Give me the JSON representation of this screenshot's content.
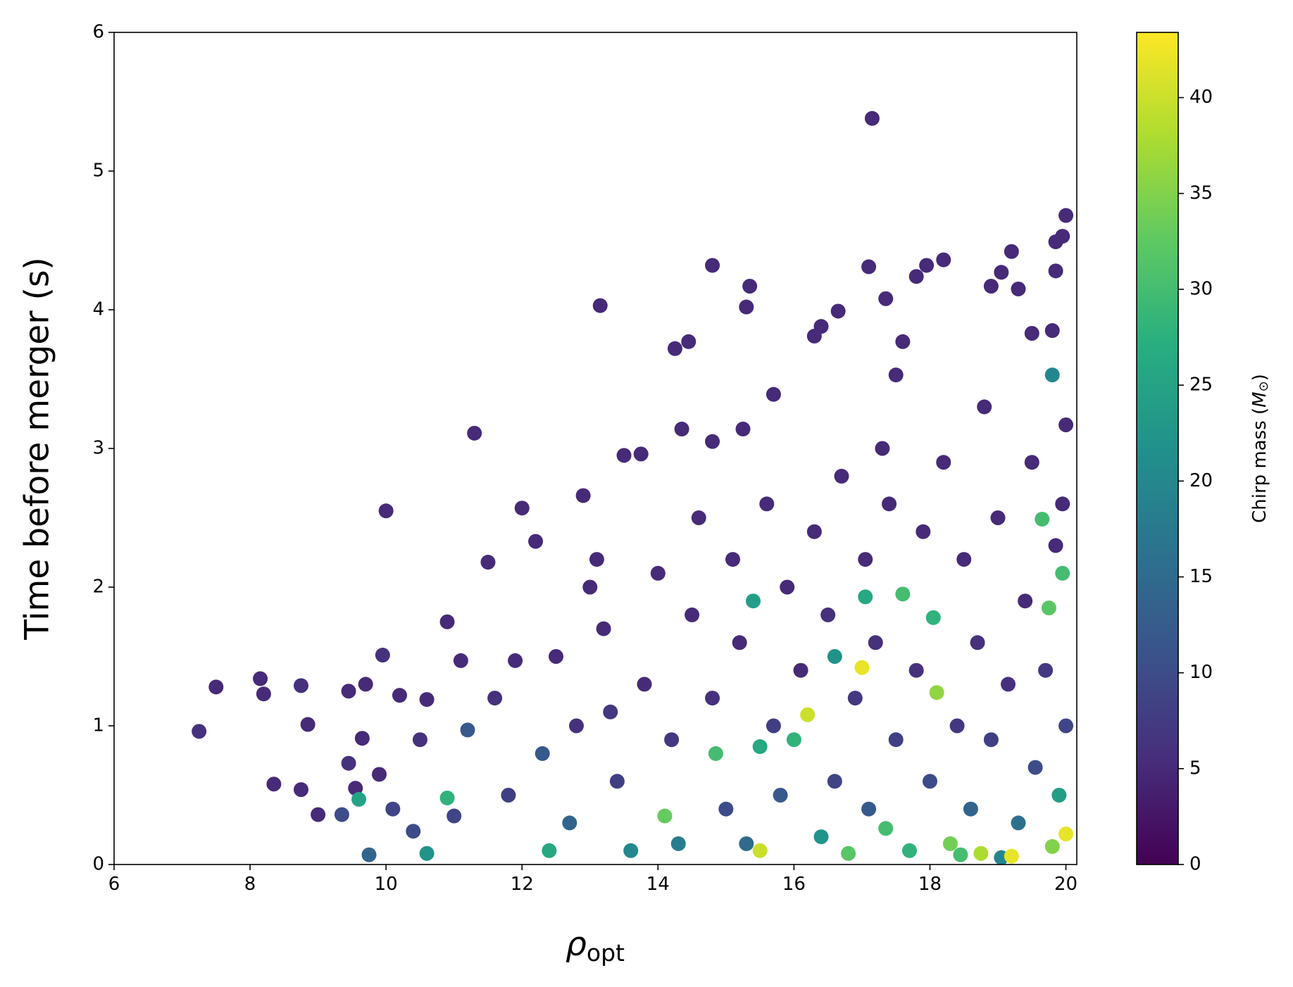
{
  "chart_data": {
    "type": "scatter",
    "x_label": {
      "symbol": "ρ",
      "subscript": "opt"
    },
    "y_label": "Time before merger (s)",
    "colorbar_label": [
      "Chirp mass (",
      "M",
      "⊙",
      ")"
    ],
    "colormap": "viridis",
    "xlim": [
      6,
      20.16
    ],
    "ylim": [
      0,
      6
    ],
    "clim": [
      0,
      43.4
    ],
    "xticks": [
      6,
      8,
      10,
      12,
      14,
      16,
      18,
      20
    ],
    "yticks": [
      0,
      1,
      2,
      3,
      4,
      5,
      6
    ],
    "cticks": [
      0,
      5,
      10,
      15,
      20,
      25,
      30,
      35,
      40
    ],
    "grid": false,
    "x": [
      7.25,
      7.5,
      8.15,
      8.2,
      8.35,
      8.75,
      8.75,
      8.85,
      9.0,
      9.35,
      9.45,
      9.45,
      9.55,
      9.6,
      9.65,
      9.7,
      9.75,
      9.9,
      9.95,
      10.0,
      10.1,
      10.2,
      10.4,
      10.6,
      10.6,
      10.9,
      10.9,
      11.1,
      11.3,
      11.2,
      11.5,
      11.9,
      12.0,
      12.2,
      12.9,
      13.1,
      13.15,
      13.5,
      13.75,
      14.25,
      14.35,
      14.45,
      14.8,
      14.8,
      15.25,
      15.3,
      15.35,
      15.7,
      16.3,
      16.4,
      16.65,
      17.1,
      17.15,
      17.35,
      17.6,
      17.8,
      17.95,
      18.2,
      18.9,
      19.05,
      19.2,
      19.3,
      19.85,
      19.85,
      19.95,
      20.0,
      19.5,
      19.8,
      19.8,
      17.5,
      12.5,
      12.8,
      13.2,
      13.4,
      13.6,
      13.8,
      14.0,
      14.2,
      14.3,
      14.5,
      14.6,
      14.8,
      14.85,
      15.0,
      15.1,
      15.2,
      15.3,
      15.4,
      15.5,
      15.6,
      15.7,
      15.8,
      15.9,
      16.0,
      16.1,
      16.2,
      16.3,
      16.4,
      16.5,
      16.6,
      16.7,
      16.8,
      16.9,
      17.0,
      17.05,
      17.1,
      17.2,
      17.3,
      17.35,
      17.4,
      17.5,
      17.6,
      17.7,
      17.8,
      17.9,
      18.0,
      18.05,
      18.1,
      18.2,
      18.3,
      18.4,
      18.5,
      18.6,
      18.7,
      18.75,
      18.8,
      18.9,
      19.0,
      19.05,
      19.15,
      19.2,
      19.3,
      19.4,
      19.5,
      19.55,
      19.65,
      19.7,
      19.75,
      19.8,
      19.85,
      19.9,
      19.95,
      20.0,
      20.0,
      20.0,
      19.95,
      11.8,
      12.3,
      12.4,
      12.7,
      13.0,
      13.3,
      11.6,
      11.0,
      10.5,
      14.1,
      15.5,
      16.6,
      17.05,
      18.45
    ],
    "values": [
      0.96,
      1.28,
      1.34,
      1.23,
      0.58,
      1.29,
      0.54,
      1.01,
      0.36,
      0.36,
      1.25,
      0.73,
      0.55,
      0.47,
      0.91,
      1.3,
      0.07,
      0.65,
      1.51,
      2.55,
      0.4,
      1.22,
      0.24,
      1.19,
      0.08,
      0.48,
      1.75,
      1.47,
      3.11,
      0.97,
      2.18,
      1.47,
      2.57,
      2.33,
      2.66,
      2.2,
      4.03,
      2.95,
      2.96,
      3.72,
      3.14,
      3.77,
      4.32,
      3.05,
      3.14,
      4.02,
      4.17,
      3.39,
      3.81,
      3.88,
      3.99,
      4.31,
      5.38,
      4.08,
      3.77,
      4.24,
      4.32,
      4.36,
      4.17,
      4.27,
      4.42,
      4.15,
      4.49,
      4.28,
      4.53,
      4.68,
      3.83,
      3.85,
      3.53,
      3.53,
      1.5,
      1.0,
      1.7,
      0.6,
      0.1,
      1.3,
      2.1,
      0.9,
      0.15,
      1.8,
      2.5,
      1.2,
      0.8,
      0.4,
      2.2,
      1.6,
      0.15,
      1.9,
      0.1,
      2.6,
      1.0,
      0.5,
      2.0,
      0.9,
      1.4,
      1.08,
      2.4,
      0.2,
      1.8,
      0.6,
      2.8,
      0.08,
      1.2,
      1.42,
      2.2,
      0.4,
      1.6,
      3.0,
      0.26,
      2.6,
      0.9,
      1.95,
      0.1,
      1.4,
      2.4,
      0.6,
      1.78,
      1.24,
      2.9,
      0.15,
      1.0,
      2.2,
      0.4,
      1.6,
      0.08,
      3.3,
      0.9,
      2.5,
      0.05,
      1.3,
      0.06,
      0.3,
      1.9,
      2.9,
      0.7,
      2.49,
      1.4,
      1.85,
      0.13,
      2.3,
      0.5,
      2.1,
      0.22,
      1.0,
      3.17,
      2.6,
      0.5,
      0.8,
      0.1,
      0.3,
      2.0,
      1.1,
      1.2,
      0.35,
      0.9,
      0.35,
      0.85,
      1.5,
      1.93,
      0.07
    ],
    "color_values": [
      6,
      5,
      5,
      5,
      5,
      6,
      5,
      5,
      5,
      10,
      5,
      6,
      5,
      25,
      5,
      5,
      14,
      5,
      6,
      5,
      9,
      5,
      10,
      5,
      22,
      28,
      5,
      5,
      5,
      12,
      5,
      5,
      5,
      5,
      5,
      5,
      5,
      5,
      5,
      5,
      5,
      5,
      5,
      5,
      5,
      5,
      5,
      5,
      5,
      5,
      5,
      5,
      5,
      5,
      5,
      5,
      5,
      5,
      5,
      5,
      5,
      5,
      5,
      5,
      5,
      5,
      5,
      5,
      20,
      5,
      5,
      6,
      5,
      8,
      20,
      5,
      5,
      7,
      18,
      5,
      5,
      6,
      30,
      10,
      5,
      5,
      15,
      24,
      40,
      5,
      8,
      12,
      5,
      28,
      5,
      40,
      5,
      22,
      6,
      9,
      5,
      32,
      7,
      42,
      5,
      12,
      6,
      5,
      30,
      5,
      8,
      30,
      28,
      6,
      5,
      10,
      28,
      36,
      5,
      34,
      7,
      5,
      14,
      6,
      38,
      5,
      8,
      5,
      20,
      6,
      42,
      16,
      5,
      5,
      10,
      30,
      7,
      32,
      35,
      5,
      24,
      30,
      42,
      9,
      5,
      5,
      8,
      12,
      26,
      14,
      5,
      7,
      6,
      9,
      6,
      33,
      26,
      22,
      26,
      30
    ]
  }
}
